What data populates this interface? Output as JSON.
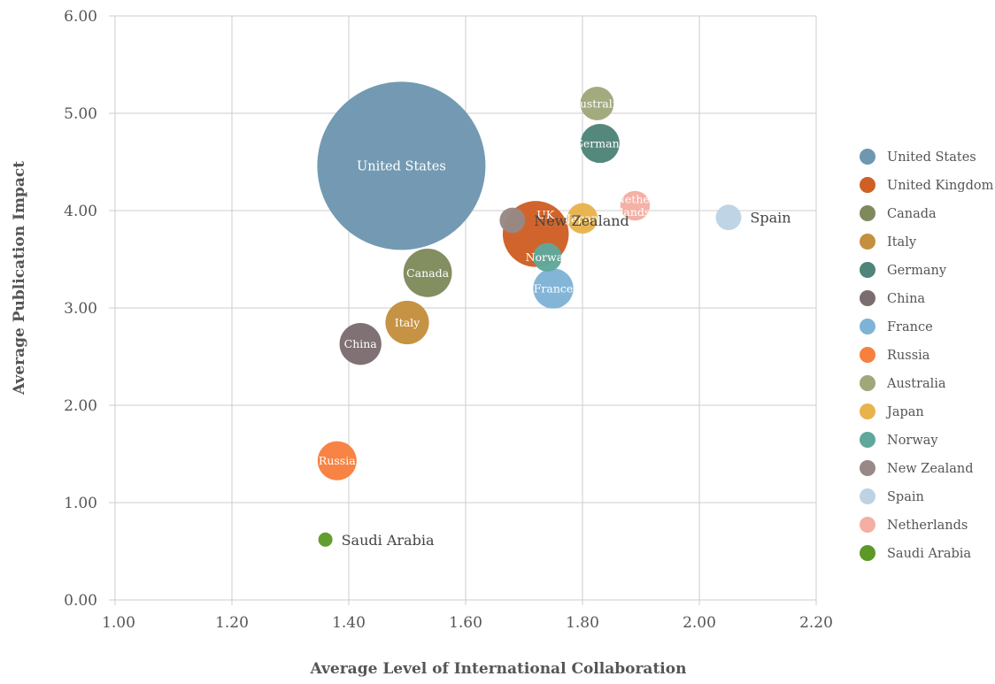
{
  "chart_data": {
    "type": "bubble",
    "xlabel": "Average Level of International Collaboration",
    "ylabel": "Average Publication Impact",
    "xlim": [
      1.0,
      2.2
    ],
    "ylim": [
      0.0,
      6.0
    ],
    "x_ticks": [
      "1.00",
      "1.20",
      "1.40",
      "1.60",
      "1.80",
      "2.00",
      "2.20"
    ],
    "y_ticks": [
      "0.00",
      "1.00",
      "2.00",
      "3.00",
      "4.00",
      "5.00",
      "6.00"
    ],
    "grid": true,
    "legend_position": "right",
    "series": [
      {
        "name": "United States",
        "label": "United States",
        "x": 1.49,
        "y": 4.46,
        "size": 1.0,
        "color": "#6e97b0"
      },
      {
        "name": "United Kingdom",
        "label": "UK",
        "x": 1.72,
        "y": 3.76,
        "size": 0.154,
        "color": "#cf5f25"
      },
      {
        "name": "Canada",
        "label": "Canada",
        "x": 1.535,
        "y": 3.36,
        "size": 0.083,
        "color": "#7f8a5c"
      },
      {
        "name": "Italy",
        "label": "Italy",
        "x": 1.5,
        "y": 2.85,
        "size": 0.067,
        "color": "#c48f3e"
      },
      {
        "name": "Germany",
        "label": "Germany",
        "x": 1.83,
        "y": 4.69,
        "size": 0.054,
        "color": "#4e8479"
      },
      {
        "name": "China",
        "label": "China",
        "x": 1.42,
        "y": 2.63,
        "size": 0.062,
        "color": "#7b6c6f"
      },
      {
        "name": "France",
        "label": "France",
        "x": 1.75,
        "y": 3.2,
        "size": 0.057,
        "color": "#7fb3d6"
      },
      {
        "name": "Russia",
        "label": "Russia",
        "x": 1.38,
        "y": 1.43,
        "size": 0.054,
        "color": "#f7803f"
      },
      {
        "name": "Australia",
        "label": "Australia",
        "x": 1.825,
        "y": 5.1,
        "size": 0.04,
        "color": "#9fa87a"
      },
      {
        "name": "Japan",
        "label": "Japan",
        "x": 1.8,
        "y": 3.92,
        "size": 0.033,
        "color": "#e8b34c"
      },
      {
        "name": "Norway",
        "label": "Norway",
        "x": 1.74,
        "y": 3.52,
        "size": 0.029,
        "color": "#5fa89b"
      },
      {
        "name": "New Zealand",
        "label": "New Zealand",
        "x": 1.68,
        "y": 3.9,
        "size": 0.023,
        "color": "#978985"
      },
      {
        "name": "Spain",
        "label": "Spain",
        "x": 2.05,
        "y": 3.93,
        "size": 0.023,
        "color": "#bdd3e3"
      },
      {
        "name": "Netherlands",
        "label": "Netherlands",
        "x": 1.89,
        "y": 4.05,
        "size": 0.031,
        "color": "#f4aea3"
      },
      {
        "name": "Saudi Arabia",
        "label": "Saudi Arabia",
        "x": 1.36,
        "y": 0.62,
        "size": 0.0065,
        "color": "#5c9a28"
      }
    ]
  }
}
